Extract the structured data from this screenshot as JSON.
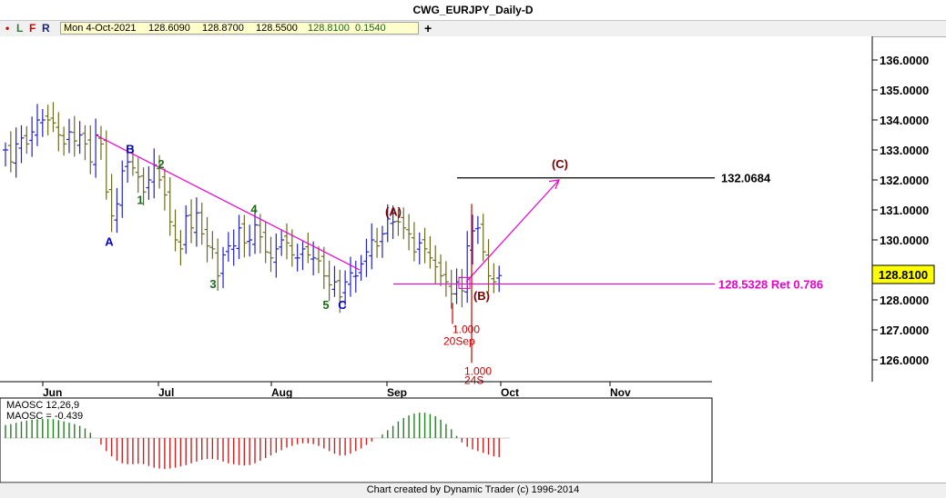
{
  "window": {
    "title": "CWG_EURJPY_Daily-D"
  },
  "toolbar": {
    "flags": [
      {
        "label": "•",
        "color": "#cc0000"
      },
      {
        "label": "L",
        "color": "#2e7d32"
      },
      {
        "label": "F",
        "color": "#cc0000"
      },
      {
        "label": "R",
        "color": "#1a237e"
      }
    ],
    "date": "Mon 4-Oct-2021",
    "open": "128.6090",
    "high": "128.8700",
    "low": "128.5500",
    "close": "128.8100",
    "change": "0.1540",
    "plus_label": "+"
  },
  "footer": {
    "text": "Chart created by Dynamic Trader  (c) 1996-2014"
  },
  "colors": {
    "bar_up": "#2020cc",
    "bar_down": "#6b6b1e",
    "trendline": "#ee00cc",
    "wave_label": "#0000cc",
    "wave_number": "#1a6b1a",
    "abc_label": "#7a0000",
    "red": "#cc0000",
    "osc_pos": "#208020",
    "osc_neg": "#cc2020"
  },
  "chart_data": {
    "type": "ohlc",
    "title": "CWG_EURJPY_Daily-D",
    "ylim": [
      125.2,
      137.0
    ],
    "y_ticks": [
      "136.0000",
      "135.0000",
      "134.0000",
      "133.0000",
      "132.0000",
      "131.0000",
      "130.0000",
      "129.0000",
      "128.0000",
      "127.0000",
      "126.0000"
    ],
    "x_labels": [
      "Jun",
      "Jul",
      "Aug",
      "Sep",
      "Oct",
      "Nov"
    ],
    "current_price": "128.8100",
    "bars_close": [
      133.0,
      132.6,
      133.2,
      133.4,
      133.2,
      133.6,
      134.0,
      134.0,
      134.0,
      133.9,
      133.5,
      133.2,
      133.6,
      133.3,
      133.5,
      133.2,
      132.6,
      133.5,
      133.2,
      131.6,
      130.8,
      131.2,
      132.3,
      132.6,
      132.4,
      132.1,
      131.6,
      132.0,
      132.5,
      132.0,
      131.5,
      130.6,
      130.0,
      129.7,
      130.8,
      130.4,
      130.9,
      130.2,
      129.8,
      129.7,
      128.8,
      129.5,
      129.8,
      129.8,
      130.4,
      129.9,
      130.0,
      130.5,
      130.1,
      129.6,
      129.4,
      129.7,
      130.0,
      129.9,
      129.5,
      129.4,
      129.7,
      129.5,
      129.4,
      129.3,
      128.8,
      128.5,
      128.6,
      128.1,
      128.6,
      128.9,
      128.8,
      129.2,
      129.6,
      130.0,
      129.8,
      130.2,
      130.7,
      130.6,
      130.6,
      130.4,
      130.2,
      129.6,
      129.9,
      129.7,
      129.4,
      129.1,
      128.8,
      128.6,
      128.2,
      128.6,
      128.3,
      129.8,
      130.3,
      130.4,
      129.6,
      128.8,
      128.6,
      128.81
    ],
    "wave_labels": [
      {
        "text": "A",
        "kind": "wave",
        "price": 129.8
      },
      {
        "text": "B",
        "kind": "wave",
        "price": 132.9
      },
      {
        "text": "C",
        "kind": "wave",
        "price": 127.7
      },
      {
        "text": "1",
        "kind": "count",
        "price": 131.2
      },
      {
        "text": "2",
        "kind": "count",
        "price": 132.4
      },
      {
        "text": "3",
        "kind": "count",
        "price": 128.4
      },
      {
        "text": "4",
        "kind": "count",
        "price": 130.9
      },
      {
        "text": "5",
        "kind": "count",
        "price": 127.7
      },
      {
        "text": "(A)",
        "kind": "abc",
        "price": 130.8
      },
      {
        "text": "(B)",
        "kind": "abc",
        "price": 128.0
      },
      {
        "text": "(C)",
        "kind": "abc",
        "price": 132.4
      }
    ],
    "annotations": {
      "target_level": "132.0684",
      "target_price": 132.0684,
      "retrace_text": "128.5328 Ret 0.786",
      "retrace_price": 128.5328,
      "cycle_label_1": "1.000",
      "cycle_label_1_date": "20Sep",
      "cycle_label_2": "1.000",
      "cycle_label_2_date": "24S"
    },
    "oscillator": {
      "name": "MAOSC 12,26,9",
      "value_label": "MAOSC = -0.439",
      "values": [
        0.3,
        0.32,
        0.35,
        0.38,
        0.4,
        0.42,
        0.43,
        0.44,
        0.44,
        0.43,
        0.41,
        0.38,
        0.35,
        0.32,
        0.28,
        0.22,
        0.12,
        0.0,
        -0.15,
        -0.3,
        -0.42,
        -0.52,
        -0.58,
        -0.6,
        -0.6,
        -0.59,
        -0.6,
        -0.64,
        -0.68,
        -0.7,
        -0.71,
        -0.7,
        -0.68,
        -0.65,
        -0.62,
        -0.58,
        -0.54,
        -0.5,
        -0.48,
        -0.48,
        -0.5,
        -0.54,
        -0.58,
        -0.6,
        -0.62,
        -0.63,
        -0.62,
        -0.58,
        -0.52,
        -0.46,
        -0.4,
        -0.34,
        -0.28,
        -0.22,
        -0.18,
        -0.14,
        -0.12,
        -0.12,
        -0.14,
        -0.18,
        -0.24,
        -0.3,
        -0.36,
        -0.4,
        -0.4,
        -0.36,
        -0.3,
        -0.24,
        -0.16,
        -0.08,
        0.0,
        0.08,
        0.18,
        0.28,
        0.38,
        0.46,
        0.52,
        0.56,
        0.58,
        0.58,
        0.55,
        0.5,
        0.42,
        0.32,
        0.2,
        0.05,
        -0.1,
        -0.2,
        -0.26,
        -0.3,
        -0.34,
        -0.38,
        -0.42,
        -0.439
      ]
    }
  }
}
